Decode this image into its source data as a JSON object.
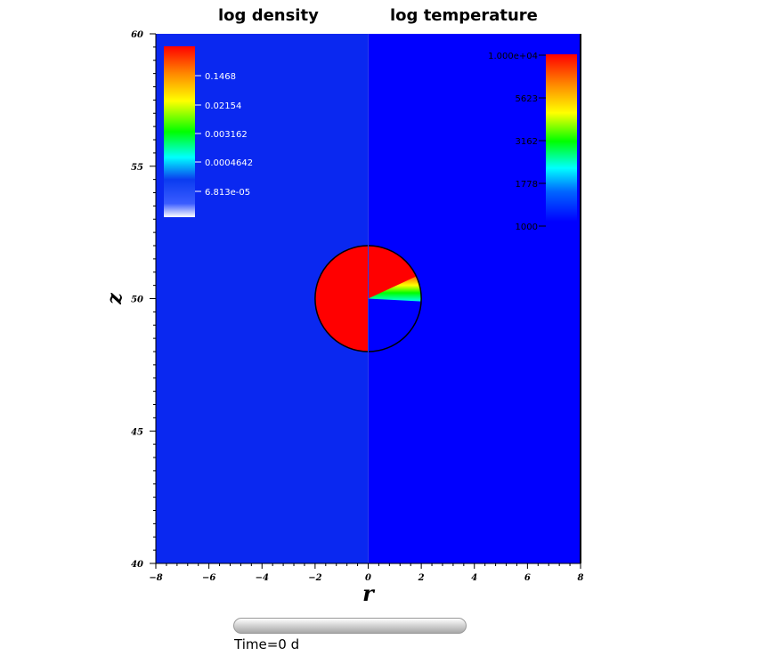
{
  "titles": {
    "left": "log density",
    "right": "log temperature"
  },
  "time_label": "Time=0 d",
  "colors": {
    "background": "#0a28f0",
    "right_background": "#0000ff",
    "blob": "#ff0000"
  },
  "chart_data": {
    "type": "heatmap",
    "xlabel": "r",
    "ylabel": "z",
    "xlim": [
      -8,
      8
    ],
    "ylim": [
      40,
      60
    ],
    "x_ticks": [
      -8,
      -6,
      -4,
      -2,
      0,
      2,
      4,
      6,
      8
    ],
    "y_ticks": [
      40,
      45,
      50,
      55,
      60
    ],
    "panels": [
      {
        "field": "log density",
        "r_range": [
          -8,
          0
        ]
      },
      {
        "field": "log temperature",
        "r_range": [
          0,
          8
        ]
      }
    ],
    "circle": {
      "center_r": 0,
      "center_z": 50,
      "radius": 2
    },
    "colorbars": [
      {
        "field": "density",
        "placement": "top-left",
        "tick_labels": [
          "0.1468",
          "0.02154",
          "0.003162",
          "0.0004642",
          "6.813e-05"
        ]
      },
      {
        "field": "temperature",
        "placement": "top-right",
        "tick_labels": [
          "1.000e+04",
          "5623",
          "3162",
          "1778",
          "1000"
        ]
      }
    ]
  }
}
